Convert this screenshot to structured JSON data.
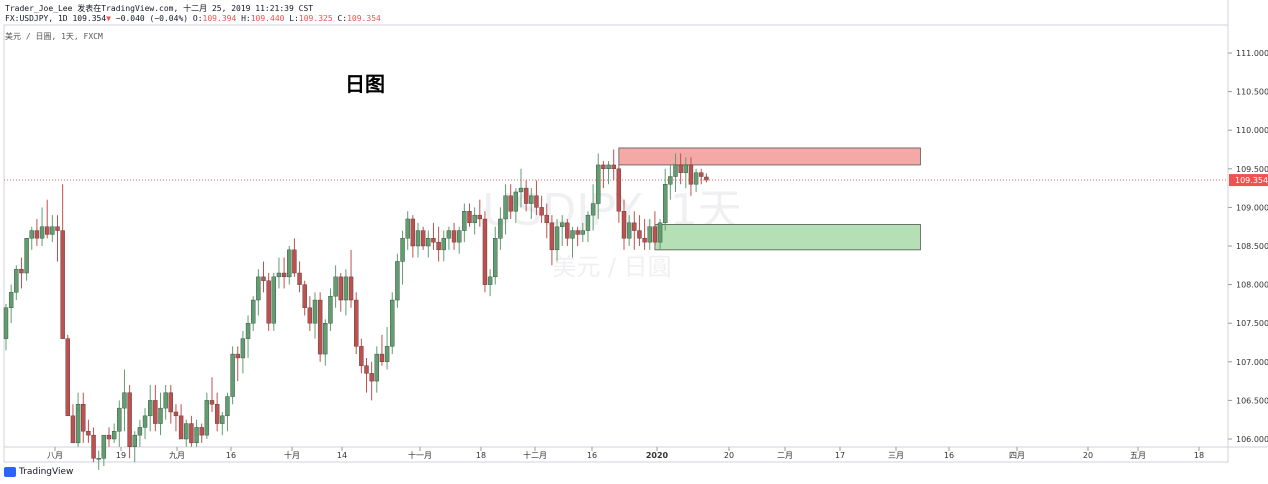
{
  "header": {
    "line1": "Trader_Joe_Lee 发表在TradingView.com, 十二月 25, 2019 11:21:39 CST",
    "symbol": "FX:USDJPY, 1D",
    "last": "109.354",
    "change": "−0.040 (−0.04%)",
    "o_label": "O:",
    "o": "109.394",
    "h_label": "H:",
    "h": "109.440",
    "l_label": "L:",
    "l": "109.325",
    "c_label": "C:",
    "c": "109.354",
    "pane_title": "美元 / 日圓, 1天, FXCM"
  },
  "annotation": {
    "text": "日图"
  },
  "watermark": {
    "line1": "USDJPY, 1天",
    "line2": "美元 / 日圓"
  },
  "brand": {
    "name": "TradingView"
  },
  "colors": {
    "up": "#5f9e6e",
    "down": "#c0504d",
    "zone_res": "#f4a9a6",
    "zone_sup": "#b5e0b5",
    "price_line": "#ef5350"
  },
  "chart_data": {
    "type": "candlestick",
    "y_axis": {
      "ticks": [
        "111.000",
        "110.500",
        "110.000",
        "109.500",
        "109.000",
        "108.500",
        "108.000",
        "107.500",
        "107.000",
        "106.500",
        "106.000"
      ],
      "range": [
        105.9,
        111.4
      ]
    },
    "x_axis": {
      "ticks": [
        "八月",
        "19",
        "九月",
        "16",
        "十月",
        "14",
        "十一月",
        "18",
        "十二月",
        "16",
        "2020",
        "20",
        "二月",
        "17",
        "三月",
        "16",
        "四月",
        "20",
        "五月",
        "18"
      ]
    },
    "last_price": 109.354,
    "last_price_label": "109.354",
    "zones": [
      {
        "type": "resistance",
        "from_bar": 119,
        "to_bar": 176,
        "low": 109.55,
        "high": 109.77
      },
      {
        "type": "support",
        "from_bar": 126,
        "to_bar": 176,
        "low": 108.45,
        "high": 108.78
      }
    ],
    "ohlc": [
      [
        107.3,
        107.75,
        107.15,
        107.7
      ],
      [
        107.7,
        108.0,
        107.5,
        107.9
      ],
      [
        107.9,
        108.25,
        107.8,
        108.2
      ],
      [
        108.2,
        108.35,
        107.95,
        108.15
      ],
      [
        108.15,
        108.6,
        108.05,
        108.6
      ],
      [
        108.6,
        108.75,
        108.45,
        108.7
      ],
      [
        108.7,
        108.85,
        108.5,
        108.6
      ],
      [
        108.6,
        109.0,
        108.5,
        108.75
      ],
      [
        108.75,
        109.1,
        108.6,
        108.65
      ],
      [
        108.65,
        108.9,
        108.55,
        108.75
      ],
      [
        108.75,
        108.9,
        108.3,
        108.7
      ],
      [
        108.7,
        109.3,
        107.3,
        107.3
      ],
      [
        107.3,
        107.35,
        106.3,
        106.3
      ],
      [
        106.3,
        106.45,
        105.95,
        105.95
      ],
      [
        105.95,
        106.6,
        105.9,
        106.45
      ],
      [
        106.45,
        106.6,
        105.95,
        106.1
      ],
      [
        106.1,
        106.25,
        105.95,
        106.05
      ],
      [
        106.05,
        106.15,
        105.7,
        105.75
      ],
      [
        105.75,
        105.85,
        105.6,
        105.75
      ],
      [
        105.75,
        106.05,
        105.65,
        106.05
      ],
      [
        106.05,
        106.15,
        105.9,
        106.0
      ],
      [
        106.0,
        106.2,
        105.95,
        106.1
      ],
      [
        106.1,
        106.5,
        105.9,
        106.4
      ],
      [
        106.4,
        106.9,
        106.1,
        106.6
      ],
      [
        106.6,
        106.7,
        105.75,
        105.9
      ],
      [
        105.9,
        106.1,
        105.7,
        106.05
      ],
      [
        106.05,
        106.25,
        105.9,
        106.15
      ],
      [
        106.15,
        106.4,
        106.0,
        106.3
      ],
      [
        106.3,
        106.7,
        106.1,
        106.5
      ],
      [
        106.5,
        106.7,
        106.1,
        106.2
      ],
      [
        106.2,
        106.6,
        106.05,
        106.4
      ],
      [
        106.4,
        106.7,
        106.25,
        106.6
      ],
      [
        106.6,
        106.7,
        106.2,
        106.35
      ],
      [
        106.35,
        106.45,
        106.1,
        106.3
      ],
      [
        106.3,
        106.45,
        106.0,
        106.0
      ],
      [
        106.0,
        106.25,
        105.9,
        106.2
      ],
      [
        106.2,
        106.3,
        105.9,
        105.95
      ],
      [
        105.95,
        106.25,
        105.9,
        106.15
      ],
      [
        106.15,
        106.2,
        105.95,
        106.05
      ],
      [
        106.05,
        106.6,
        106.0,
        106.5
      ],
      [
        106.5,
        106.8,
        106.35,
        106.45
      ],
      [
        106.45,
        106.6,
        106.1,
        106.2
      ],
      [
        106.2,
        106.35,
        106.05,
        106.3
      ],
      [
        106.3,
        106.6,
        106.1,
        106.55
      ],
      [
        106.55,
        107.2,
        106.45,
        107.1
      ],
      [
        107.1,
        107.2,
        106.75,
        107.05
      ],
      [
        107.05,
        107.4,
        106.85,
        107.3
      ],
      [
        107.3,
        107.6,
        107.05,
        107.5
      ],
      [
        107.5,
        107.85,
        107.4,
        107.8
      ],
      [
        107.8,
        108.2,
        107.6,
        108.1
      ],
      [
        108.1,
        108.3,
        107.9,
        108.05
      ],
      [
        108.05,
        108.15,
        107.4,
        107.5
      ],
      [
        107.5,
        108.15,
        107.4,
        108.1
      ],
      [
        108.1,
        108.35,
        107.95,
        108.15
      ],
      [
        108.15,
        108.35,
        107.95,
        108.1
      ],
      [
        108.1,
        108.5,
        108.0,
        108.45
      ],
      [
        108.45,
        108.6,
        108.1,
        108.15
      ],
      [
        108.15,
        108.3,
        107.9,
        108.0
      ],
      [
        108.0,
        108.05,
        107.6,
        107.7
      ],
      [
        107.7,
        107.85,
        107.4,
        107.5
      ],
      [
        107.5,
        107.9,
        107.3,
        107.8
      ],
      [
        107.8,
        107.9,
        107.0,
        107.1
      ],
      [
        107.1,
        107.55,
        106.95,
        107.5
      ],
      [
        107.5,
        107.95,
        107.4,
        107.85
      ],
      [
        107.85,
        108.25,
        107.7,
        108.1
      ],
      [
        108.1,
        108.15,
        107.65,
        107.8
      ],
      [
        107.8,
        108.2,
        107.6,
        108.1
      ],
      [
        108.1,
        108.45,
        107.7,
        107.8
      ],
      [
        107.8,
        107.9,
        107.1,
        107.2
      ],
      [
        107.2,
        107.3,
        106.85,
        106.95
      ],
      [
        106.95,
        107.05,
        106.6,
        106.85
      ],
      [
        106.85,
        107.0,
        106.5,
        106.75
      ],
      [
        106.75,
        107.2,
        106.6,
        107.1
      ],
      [
        107.1,
        107.35,
        106.95,
        107.0
      ],
      [
        107.0,
        107.45,
        106.9,
        107.2
      ],
      [
        107.2,
        107.9,
        107.1,
        107.8
      ],
      [
        107.8,
        108.4,
        107.7,
        108.3
      ],
      [
        108.3,
        108.7,
        108.0,
        108.6
      ],
      [
        108.6,
        108.95,
        108.45,
        108.85
      ],
      [
        108.85,
        108.9,
        108.35,
        108.5
      ],
      [
        108.5,
        108.8,
        108.35,
        108.7
      ],
      [
        108.7,
        108.75,
        108.45,
        108.5
      ],
      [
        108.5,
        108.7,
        108.35,
        108.6
      ],
      [
        108.6,
        108.8,
        108.45,
        108.55
      ],
      [
        108.55,
        108.75,
        108.3,
        108.45
      ],
      [
        108.45,
        108.7,
        108.3,
        108.6
      ],
      [
        108.6,
        108.75,
        108.45,
        108.7
      ],
      [
        108.7,
        108.8,
        108.45,
        108.55
      ],
      [
        108.55,
        108.75,
        108.4,
        108.7
      ],
      [
        108.7,
        109.05,
        108.55,
        108.95
      ],
      [
        108.95,
        109.05,
        108.75,
        108.8
      ],
      [
        108.8,
        109.0,
        108.65,
        108.9
      ],
      [
        108.9,
        109.1,
        108.75,
        108.85
      ],
      [
        108.85,
        108.95,
        107.9,
        108.0
      ],
      [
        108.0,
        108.2,
        107.85,
        108.1
      ],
      [
        108.1,
        108.75,
        108.0,
        108.6
      ],
      [
        108.6,
        109.0,
        108.45,
        108.85
      ],
      [
        108.85,
        109.3,
        108.65,
        109.15
      ],
      [
        109.15,
        109.3,
        108.85,
        108.95
      ],
      [
        108.95,
        109.25,
        108.8,
        109.2
      ],
      [
        109.2,
        109.5,
        109.0,
        109.25
      ],
      [
        109.25,
        109.35,
        108.95,
        109.05
      ],
      [
        109.05,
        109.25,
        108.85,
        109.15
      ],
      [
        109.15,
        109.35,
        108.9,
        109.0
      ],
      [
        109.0,
        109.15,
        108.8,
        108.9
      ],
      [
        108.9,
        109.05,
        108.6,
        108.8
      ],
      [
        108.8,
        108.9,
        108.25,
        108.45
      ],
      [
        108.45,
        108.85,
        108.3,
        108.75
      ],
      [
        108.75,
        108.9,
        108.5,
        108.8
      ],
      [
        108.8,
        108.85,
        108.5,
        108.6
      ],
      [
        108.6,
        108.75,
        108.35,
        108.7
      ],
      [
        108.7,
        108.75,
        108.5,
        108.65
      ],
      [
        108.65,
        108.8,
        108.55,
        108.7
      ],
      [
        108.7,
        108.95,
        108.55,
        108.9
      ],
      [
        108.9,
        109.3,
        108.7,
        109.05
      ],
      [
        109.05,
        109.7,
        108.85,
        109.55
      ],
      [
        109.55,
        109.6,
        109.25,
        109.5
      ],
      [
        109.5,
        109.6,
        109.3,
        109.55
      ],
      [
        109.55,
        109.75,
        109.35,
        109.5
      ],
      [
        109.5,
        109.55,
        108.8,
        108.95
      ],
      [
        108.95,
        109.1,
        108.45,
        108.6
      ],
      [
        108.6,
        108.9,
        108.5,
        108.8
      ],
      [
        108.8,
        108.95,
        108.45,
        108.7
      ],
      [
        108.7,
        108.9,
        108.5,
        108.6
      ],
      [
        108.6,
        108.85,
        108.45,
        108.55
      ],
      [
        108.55,
        108.85,
        108.45,
        108.75
      ],
      [
        108.75,
        108.95,
        108.5,
        108.55
      ],
      [
        108.55,
        108.85,
        108.45,
        108.8
      ],
      [
        108.8,
        109.5,
        108.7,
        109.3
      ],
      [
        109.3,
        109.55,
        109.1,
        109.4
      ],
      [
        109.4,
        109.7,
        109.2,
        109.55
      ],
      [
        109.55,
        109.7,
        109.3,
        109.45
      ],
      [
        109.45,
        109.65,
        109.25,
        109.55
      ],
      [
        109.55,
        109.65,
        109.15,
        109.3
      ],
      [
        109.3,
        109.5,
        109.2,
        109.45
      ],
      [
        109.45,
        109.5,
        109.3,
        109.4
      ],
      [
        109.394,
        109.44,
        109.325,
        109.354
      ]
    ]
  }
}
